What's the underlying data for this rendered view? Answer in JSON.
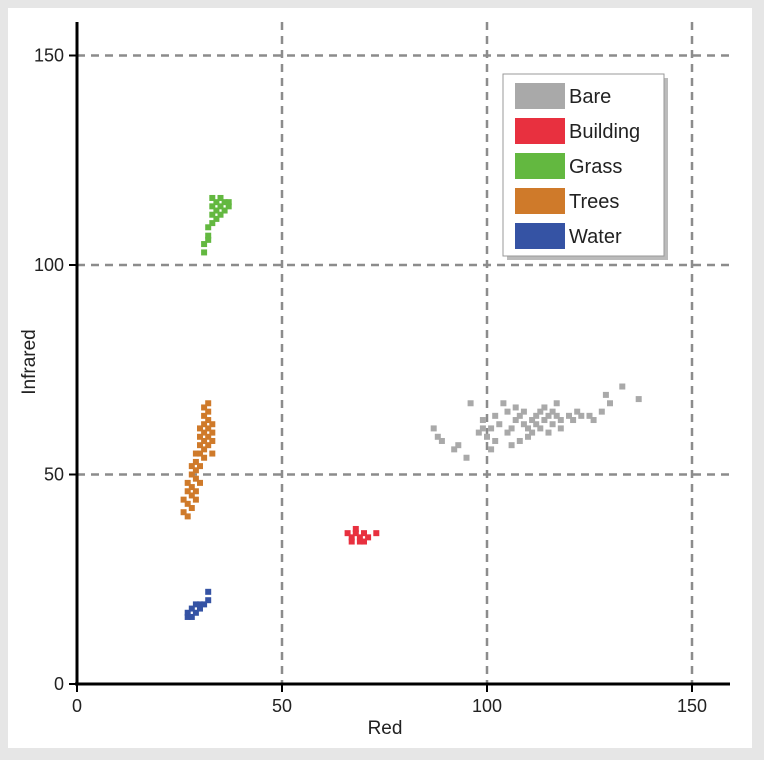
{
  "chart_data": {
    "type": "scatter",
    "xlabel": "Red",
    "ylabel": "Infrared",
    "xlim": [
      0,
      160
    ],
    "ylim": [
      0,
      160
    ],
    "xticks": [
      0,
      50,
      100,
      150
    ],
    "yticks": [
      0,
      50,
      100,
      150
    ],
    "grid": true,
    "legend_position": "top-right",
    "series": [
      {
        "name": "Bare",
        "color": "#a9a9a9",
        "points": [
          [
            87,
            61
          ],
          [
            88,
            59
          ],
          [
            89,
            58
          ],
          [
            92,
            56
          ],
          [
            93,
            57
          ],
          [
            95,
            54
          ],
          [
            96,
            67
          ],
          [
            98,
            60
          ],
          [
            99,
            61
          ],
          [
            99,
            63
          ],
          [
            100,
            59
          ],
          [
            101,
            61
          ],
          [
            101,
            56
          ],
          [
            102,
            64
          ],
          [
            102,
            58
          ],
          [
            103,
            62
          ],
          [
            104,
            67
          ],
          [
            105,
            65
          ],
          [
            105,
            60
          ],
          [
            106,
            61
          ],
          [
            106,
            57
          ],
          [
            107,
            63
          ],
          [
            107,
            66
          ],
          [
            108,
            58
          ],
          [
            108,
            64
          ],
          [
            109,
            62
          ],
          [
            109,
            65
          ],
          [
            110,
            61
          ],
          [
            110,
            59
          ],
          [
            111,
            63
          ],
          [
            111,
            60
          ],
          [
            112,
            64
          ],
          [
            112,
            62
          ],
          [
            113,
            65
          ],
          [
            113,
            61
          ],
          [
            114,
            63
          ],
          [
            114,
            66
          ],
          [
            115,
            64
          ],
          [
            115,
            60
          ],
          [
            116,
            62
          ],
          [
            116,
            65
          ],
          [
            117,
            64
          ],
          [
            117,
            67
          ],
          [
            118,
            63
          ],
          [
            118,
            61
          ],
          [
            120,
            64
          ],
          [
            121,
            63
          ],
          [
            122,
            65
          ],
          [
            123,
            64
          ],
          [
            125,
            64
          ],
          [
            126,
            63
          ],
          [
            128,
            65
          ],
          [
            129,
            69
          ],
          [
            130,
            67
          ],
          [
            133,
            71
          ],
          [
            137,
            68
          ]
        ]
      },
      {
        "name": "Building",
        "color": "#e8303f",
        "points": [
          [
            66,
            36
          ],
          [
            67,
            35
          ],
          [
            67,
            34
          ],
          [
            68,
            36
          ],
          [
            68,
            37
          ],
          [
            69,
            35
          ],
          [
            69,
            34
          ],
          [
            70,
            36
          ],
          [
            70,
            34
          ],
          [
            71,
            35
          ],
          [
            73,
            36
          ]
        ]
      },
      {
        "name": "Grass",
        "color": "#63b840",
        "points": [
          [
            31,
            103
          ],
          [
            31,
            105
          ],
          [
            32,
            106
          ],
          [
            32,
            107
          ],
          [
            32,
            109
          ],
          [
            33,
            110
          ],
          [
            33,
            112
          ],
          [
            33,
            114
          ],
          [
            33,
            116
          ],
          [
            34,
            111
          ],
          [
            34,
            113
          ],
          [
            34,
            115
          ],
          [
            35,
            112
          ],
          [
            35,
            114
          ],
          [
            35,
            116
          ],
          [
            36,
            113
          ],
          [
            36,
            115
          ],
          [
            37,
            114
          ],
          [
            37,
            115
          ]
        ]
      },
      {
        "name": "Trees",
        "color": "#cf7a2a",
        "points": [
          [
            26,
            41
          ],
          [
            26,
            44
          ],
          [
            27,
            40
          ],
          [
            27,
            43
          ],
          [
            27,
            46
          ],
          [
            27,
            48
          ],
          [
            28,
            42
          ],
          [
            28,
            45
          ],
          [
            28,
            47
          ],
          [
            28,
            50
          ],
          [
            28,
            52
          ],
          [
            29,
            44
          ],
          [
            29,
            46
          ],
          [
            29,
            49
          ],
          [
            29,
            51
          ],
          [
            29,
            53
          ],
          [
            29,
            55
          ],
          [
            30,
            48
          ],
          [
            30,
            52
          ],
          [
            30,
            55
          ],
          [
            30,
            57
          ],
          [
            30,
            59
          ],
          [
            30,
            61
          ],
          [
            31,
            54
          ],
          [
            31,
            56
          ],
          [
            31,
            58
          ],
          [
            31,
            60
          ],
          [
            31,
            62
          ],
          [
            31,
            64
          ],
          [
            31,
            66
          ],
          [
            32,
            57
          ],
          [
            32,
            59
          ],
          [
            32,
            61
          ],
          [
            32,
            63
          ],
          [
            32,
            65
          ],
          [
            32,
            67
          ],
          [
            33,
            55
          ],
          [
            33,
            58
          ],
          [
            33,
            60
          ],
          [
            33,
            62
          ]
        ]
      },
      {
        "name": "Water",
        "color": "#3553a4",
        "points": [
          [
            27,
            16
          ],
          [
            27,
            17
          ],
          [
            28,
            16
          ],
          [
            28,
            18
          ],
          [
            29,
            17
          ],
          [
            29,
            19
          ],
          [
            30,
            18
          ],
          [
            30,
            19
          ],
          [
            31,
            19
          ],
          [
            32,
            20
          ],
          [
            32,
            22
          ]
        ]
      }
    ]
  }
}
